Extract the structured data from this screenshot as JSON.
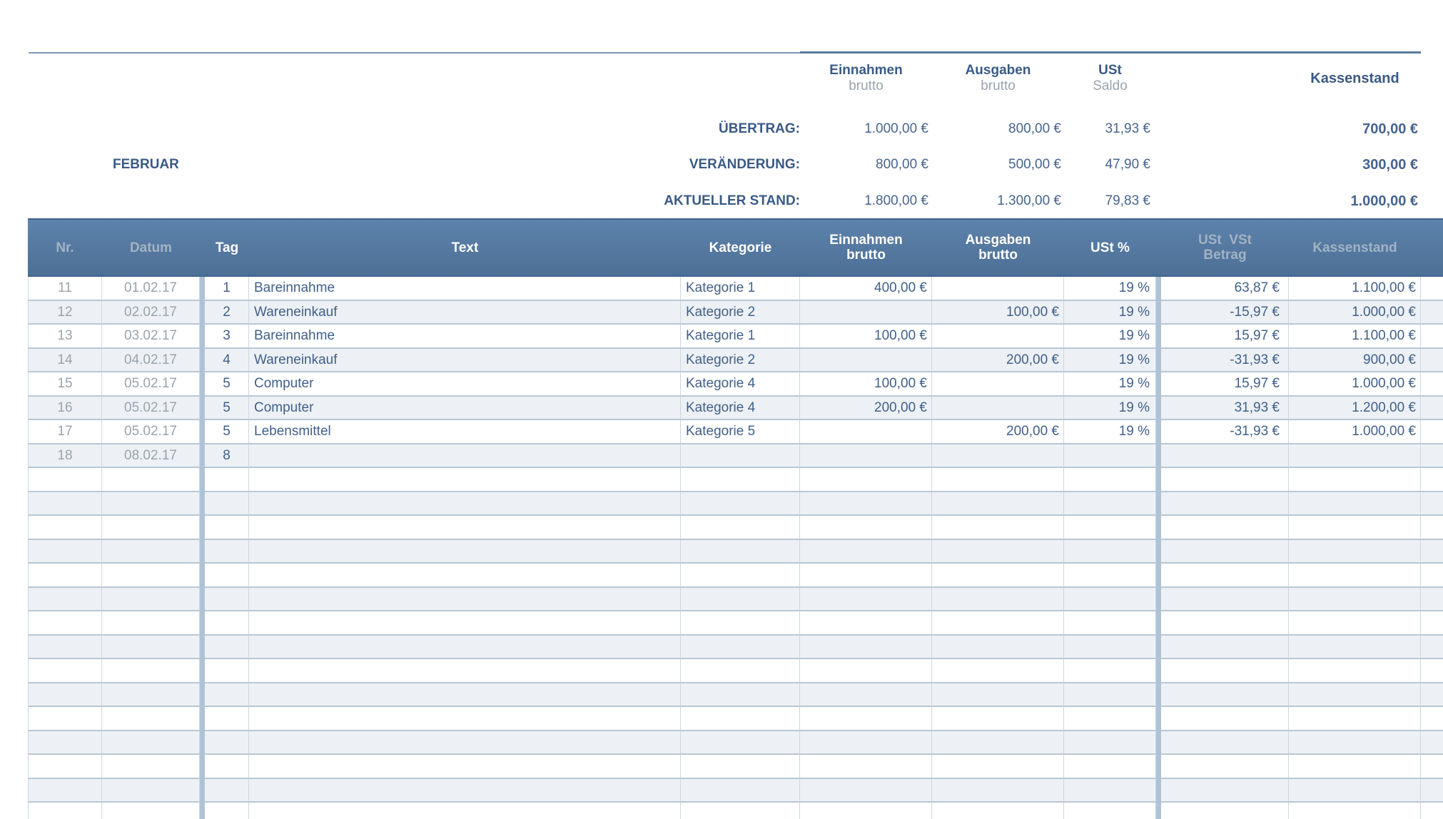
{
  "summary": {
    "month": "FEBRUAR",
    "columns": {
      "einnahmen": {
        "title": "Einnahmen",
        "subtitle": "brutto"
      },
      "ausgaben": {
        "title": "Ausgaben",
        "subtitle": "brutto"
      },
      "ust": {
        "title": "USt",
        "subtitle": "Saldo"
      },
      "kassenstand": {
        "title": "Kassenstand"
      }
    },
    "rows": [
      {
        "label": "ÜBERTRAG:",
        "einnahmen": "1.000,00 €",
        "ausgaben": "800,00 €",
        "ust": "31,93 €",
        "kassenstand": "700,00 €"
      },
      {
        "label": "VERÄNDERUNG:",
        "einnahmen": "800,00 €",
        "ausgaben": "500,00 €",
        "ust": "47,90 €",
        "kassenstand": "300,00 €"
      },
      {
        "label": "AKTUELLER STAND:",
        "einnahmen": "1.800,00 €",
        "ausgaben": "1.300,00 €",
        "ust": "79,83 €",
        "kassenstand": "1.000,00 €"
      }
    ]
  },
  "table": {
    "headers": [
      {
        "key": "nr",
        "lines": [
          "Nr."
        ],
        "tone": "gray"
      },
      {
        "key": "datum",
        "lines": [
          "Datum"
        ],
        "tone": "gray"
      },
      {
        "key": "tag",
        "lines": [
          "Tag"
        ],
        "tone": "white"
      },
      {
        "key": "text",
        "lines": [
          "Text"
        ],
        "tone": "white"
      },
      {
        "key": "kategorie",
        "lines": [
          "Kategorie"
        ],
        "tone": "white"
      },
      {
        "key": "einnahmen",
        "lines": [
          "Einnahmen",
          "brutto"
        ],
        "tone": "white"
      },
      {
        "key": "ausgaben",
        "lines": [
          "Ausgaben",
          "brutto"
        ],
        "tone": "white"
      },
      {
        "key": "ust",
        "lines": [
          "USt %"
        ],
        "tone": "white"
      },
      {
        "key": "vst",
        "lines": [
          "USt  VSt",
          "Betrag"
        ],
        "tone": "gray"
      },
      {
        "key": "kassenstand",
        "lines": [
          "Kassenstand"
        ],
        "tone": "gray"
      }
    ],
    "rows": [
      [
        "11",
        "01.02.17",
        "1",
        "Bareinnahme",
        "Kategorie 1",
        "400,00 €",
        "",
        "19 %",
        "63,87 €",
        "1.100,00 €"
      ],
      [
        "12",
        "02.02.17",
        "2",
        "Wareneinkauf",
        "Kategorie 2",
        "",
        "100,00 €",
        "19 %",
        "-15,97 €",
        "1.000,00 €"
      ],
      [
        "13",
        "03.02.17",
        "3",
        "Bareinnahme",
        "Kategorie 1",
        "100,00 €",
        "",
        "19 %",
        "15,97 €",
        "1.100,00 €"
      ],
      [
        "14",
        "04.02.17",
        "4",
        "Wareneinkauf",
        "Kategorie 2",
        "",
        "200,00 €",
        "19 %",
        "-31,93 €",
        "900,00 €"
      ],
      [
        "15",
        "05.02.17",
        "5",
        "Computer",
        "Kategorie 4",
        "100,00 €",
        "",
        "19 %",
        "15,97 €",
        "1.000,00 €"
      ],
      [
        "16",
        "05.02.17",
        "5",
        "Computer",
        "Kategorie 4",
        "200,00 €",
        "",
        "19 %",
        "31,93 €",
        "1.200,00 €"
      ],
      [
        "17",
        "05.02.17",
        "5",
        "Lebensmittel",
        "Kategorie 5",
        "",
        "200,00 €",
        "19 %",
        "-31,93 €",
        "1.000,00 €"
      ],
      [
        "18",
        "08.02.17",
        "8",
        "",
        "",
        "",
        "",
        "",
        "",
        ""
      ]
    ],
    "empty_rows": 15
  }
}
